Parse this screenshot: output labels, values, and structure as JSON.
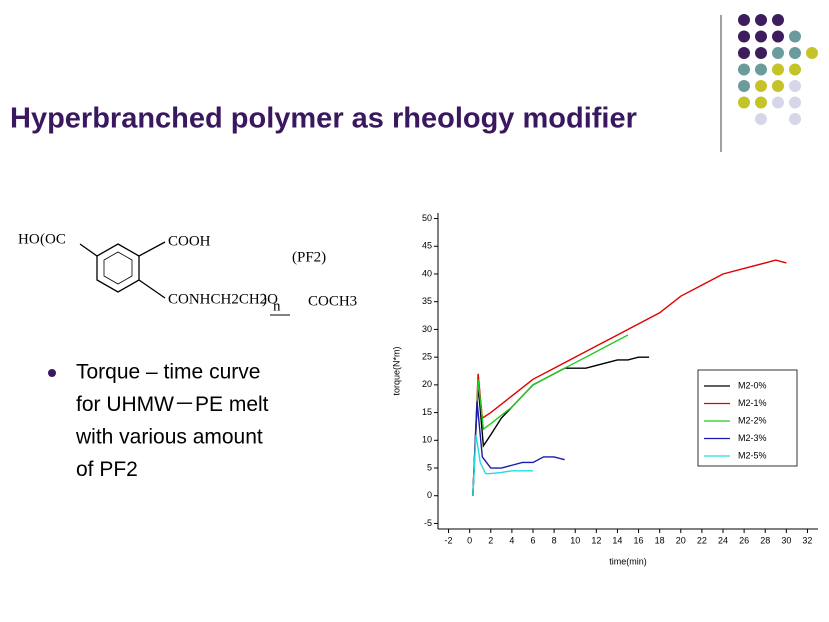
{
  "slide": {
    "title": "Hyperbranched polymer as rheology modifier",
    "bullet": [
      "Torque – time curve",
      "for UHMW－PE melt",
      "with various amount",
      "of PF2"
    ]
  },
  "structure": {
    "labels": [
      "HO",
      "(OC",
      "COOH",
      "(PF2)",
      "CONHCH2CH2O",
      ")",
      "n",
      "COCH3"
    ]
  },
  "chart_data": {
    "type": "line",
    "xlabel": "time(min)",
    "ylabel": "torque(N*m)",
    "xlim": [
      -3,
      33
    ],
    "ylim": [
      -6,
      51
    ],
    "xticks": [
      -2,
      0,
      2,
      4,
      6,
      8,
      10,
      12,
      14,
      16,
      18,
      20,
      22,
      24,
      26,
      28,
      30,
      32
    ],
    "yticks": [
      -5,
      0,
      5,
      10,
      15,
      20,
      25,
      30,
      35,
      40,
      45,
      50
    ],
    "legend": "right",
    "series": [
      {
        "name": "M2-0%",
        "color": "#000000",
        "x": [
          0.3,
          0.8,
          1.3,
          2,
          3,
          4,
          5,
          6,
          7,
          8,
          9,
          10,
          11,
          12,
          13,
          14,
          15,
          16,
          17
        ],
        "values": [
          0,
          20,
          9,
          11,
          14,
          16,
          18,
          20,
          21,
          22,
          23,
          23,
          23,
          23.5,
          24,
          24.5,
          24.5,
          25,
          25
        ]
      },
      {
        "name": "M2-1%",
        "color": "#e00000",
        "x": [
          0.3,
          0.8,
          1.2,
          2,
          4,
          6,
          8,
          10,
          12,
          14,
          16,
          18,
          20,
          22,
          24,
          26,
          28,
          29,
          30
        ],
        "values": [
          0,
          22,
          14,
          15,
          18,
          21,
          23,
          25,
          27,
          29,
          31,
          33,
          36,
          38,
          40,
          41,
          42,
          42.5,
          42
        ]
      },
      {
        "name": "M2-2%",
        "color": "#22cc22",
        "x": [
          0.3,
          0.8,
          1.3,
          2,
          4,
          6,
          8,
          10,
          12,
          14,
          15
        ],
        "values": [
          0,
          21,
          12,
          13,
          16,
          20,
          22,
          24,
          26,
          28,
          29
        ]
      },
      {
        "name": "M2-3%",
        "color": "#1a1ab0",
        "x": [
          0.3,
          0.7,
          1.2,
          2,
          3,
          4,
          5,
          6,
          7,
          8,
          9
        ],
        "values": [
          0,
          17,
          7,
          5,
          5,
          5.5,
          6,
          6,
          7,
          7,
          6.5
        ]
      },
      {
        "name": "M2-5%",
        "color": "#22dddd",
        "x": [
          0.3,
          0.6,
          1,
          1.5,
          2,
          3,
          4,
          5,
          6
        ],
        "values": [
          0,
          11,
          6,
          4,
          4,
          4.2,
          4.5,
          4.5,
          4.5
        ]
      }
    ]
  }
}
